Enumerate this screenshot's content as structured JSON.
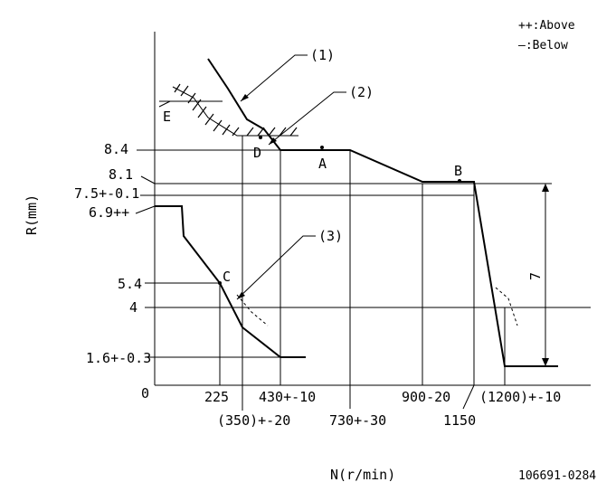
{
  "legend": {
    "above": "++:Above",
    "below": "—:Below"
  },
  "axes": {
    "y_label": "R(mm)",
    "x_label": "N(r/min)",
    "origin": "0"
  },
  "y_ticks": {
    "t84": "8.4",
    "t81": "8.1",
    "t75": "7.5+-0.1",
    "t69": "6.9++",
    "t54": "5.4",
    "t4": "4",
    "t16": "1.6+-0.3"
  },
  "x_ticks": {
    "t225": "225",
    "t350": "(350)+-20",
    "t430": "430+-10",
    "t730": "730+-30",
    "t900": "900-20",
    "t1150": "1150",
    "t1200": "(1200)+-10"
  },
  "points": {
    "A": "A",
    "B": "B",
    "C": "C",
    "D": "D",
    "E": "E"
  },
  "callouts": {
    "c1": "(1)",
    "c2": "(2)",
    "c3": "(3)"
  },
  "dimension": "7",
  "doc_id": "106691-0284"
}
